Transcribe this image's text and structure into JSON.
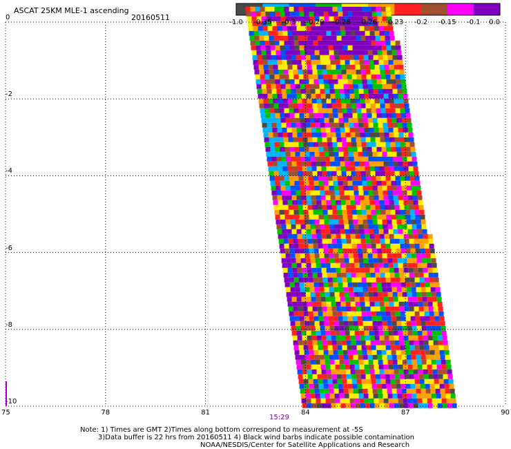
{
  "title": "ASCAT 25KM MLE-1 ascending",
  "date": "20160511",
  "time_label": "15:29",
  "notes": [
    "Note: 1) Times are GMT 2)Times along bottom correspond to measurement at -5S",
    "3)Data buffer is 22 hrs from 20160511 4) Black wind barbs indicate possible contamination",
    "NOAA/NESDIS/Center for Satellite Applications and Research"
  ],
  "colorbar": {
    "colors": [
      "#4a4a4a",
      "#00b4ff",
      "#0050ff",
      "#00c000",
      "#ffee00",
      "#ffa000",
      "#ff2020",
      "#a05030",
      "#ff00ff",
      "#8000c0"
    ],
    "labels": [
      "-1.0",
      "-0.35",
      "-0.3",
      "-0.29",
      "-0.28",
      "-0.26",
      "-0.23",
      "-0.2",
      "-0.15",
      "-0.1",
      "0.0"
    ]
  },
  "chart_data": {
    "type": "heatmap",
    "title": "ASCAT 25KM MLE-1 ascending",
    "xlabel": "",
    "ylabel": "",
    "xlim": [
      75,
      90
    ],
    "ylim": [
      -10,
      0
    ],
    "x_ticks": [
      "75",
      "78",
      "81",
      "84",
      "87",
      "90"
    ],
    "y_ticks": [
      "0",
      "-2",
      "-4",
      "-6",
      "-8",
      "-10"
    ],
    "grid": true,
    "swath": {
      "lat_top": 0.4,
      "lat_bottom": -10,
      "lon_left_top": 82.2,
      "lon_right_top": 86.6,
      "lon_left_bottom": 83.9,
      "lon_right_bottom": 88.6
    }
  }
}
